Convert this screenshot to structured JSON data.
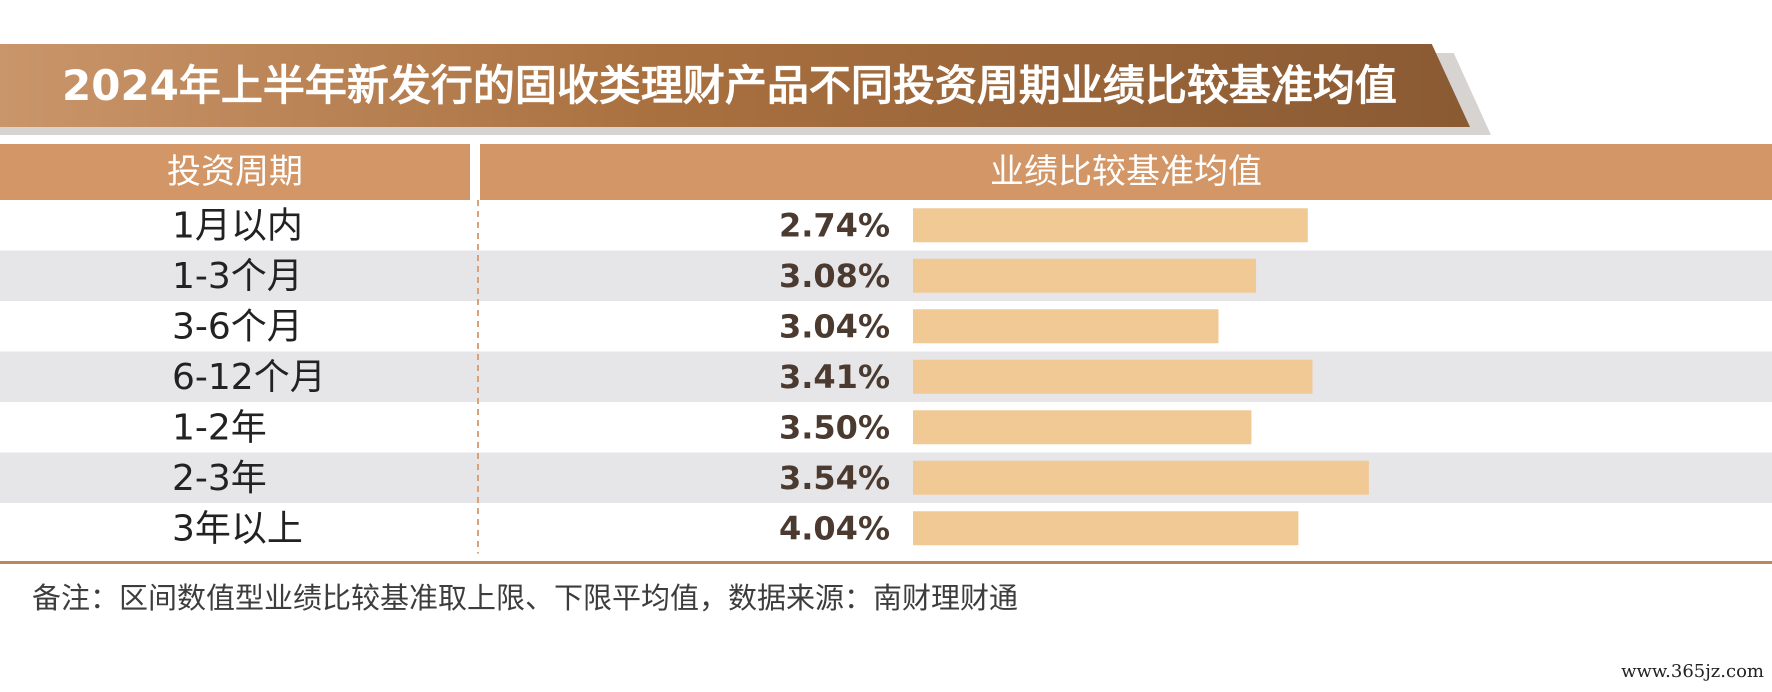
{
  "title": "2024年上半年新发行的固收类理财产品不同投资周期业绩比较基准均值",
  "table_headers": {
    "period": "投资周期",
    "value": "业绩比较基准均值"
  },
  "colors": {
    "banner": "#a9703f",
    "header": "#d39666",
    "bar": "#f0c995",
    "stripe": "#e6e6e8",
    "value_text": "#4a3a30"
  },
  "chart_data": {
    "type": "bar",
    "orientation": "horizontal",
    "categories": [
      "1月以内",
      "1-3个月",
      "3-6个月",
      "6-12个月",
      "1-2年",
      "2-3年",
      "3年以上"
    ],
    "values": [
      2.74,
      3.08,
      3.04,
      3.41,
      3.5,
      3.54,
      4.04
    ],
    "value_labels": [
      "2.74%",
      "3.08%",
      "3.04%",
      "3.41%",
      "3.50%",
      "3.54%",
      "4.04%"
    ],
    "bar_fill_fraction": [
      0.84,
      0.73,
      0.65,
      0.85,
      0.72,
      0.97,
      0.82
    ],
    "xlabel": "",
    "ylabel": ""
  },
  "footnote": "备注：区间数值型业绩比较基准取上限、下限平均值，数据来源：南财理财通",
  "watermark": "www.365jz.com"
}
